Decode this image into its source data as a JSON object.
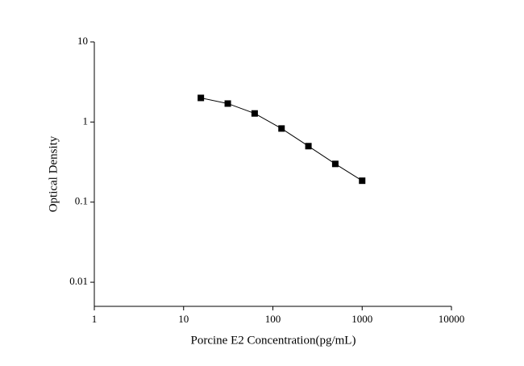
{
  "chart_data": {
    "type": "scatter",
    "x_label": "Porcine E2 Concentration(pg/mL)",
    "y_label": "Optical Density",
    "x_log": true,
    "y_log": true,
    "connect": true,
    "series": [
      {
        "color": "#000000",
        "x": [
          15.6,
          31.25,
          62.5,
          125,
          250,
          500,
          1000
        ],
        "values": [
          2.0,
          1.7,
          1.28,
          0.83,
          0.5,
          0.3,
          0.185
        ]
      }
    ],
    "xlim": [
      1,
      10000
    ],
    "xticks": [
      1,
      10,
      100,
      1000,
      10000
    ],
    "ylim": [
      0.005,
      10
    ],
    "yticks": [
      0.01,
      0.1,
      1,
      10
    ]
  }
}
